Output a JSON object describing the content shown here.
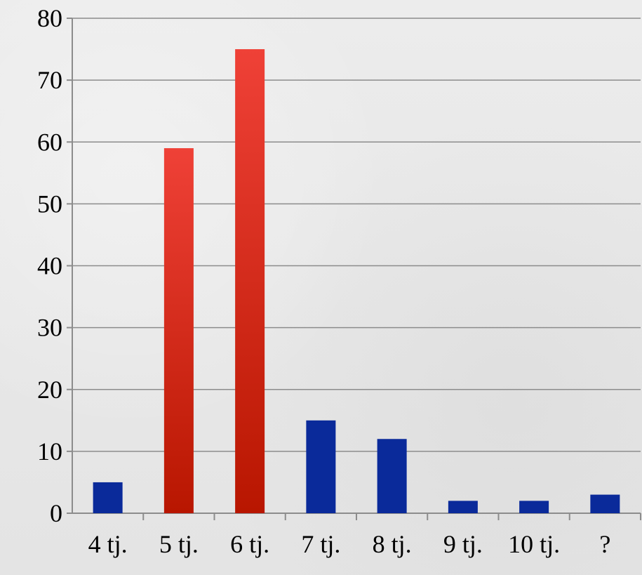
{
  "chart_data": {
    "type": "bar",
    "title": "",
    "xlabel": "",
    "ylabel": "",
    "categories": [
      "4 tj.",
      "5 tj.",
      "6 tj.",
      "7 tj.",
      "8 tj.",
      "9 tj.",
      "10 tj.",
      "?"
    ],
    "values": [
      5,
      59,
      75,
      15,
      12,
      2,
      2,
      3
    ],
    "highlight": [
      false,
      true,
      true,
      false,
      false,
      false,
      false,
      false
    ],
    "ylim": [
      0,
      80
    ],
    "yticks": [
      0,
      10,
      20,
      30,
      40,
      50,
      60,
      70,
      80
    ],
    "grid": true,
    "legend": "none",
    "colors": {
      "default_bar": "#0a2a9a",
      "highlight_bar_top": "#ef4137",
      "highlight_bar_bottom": "#b81600",
      "grid": "#8c8c8c"
    }
  }
}
